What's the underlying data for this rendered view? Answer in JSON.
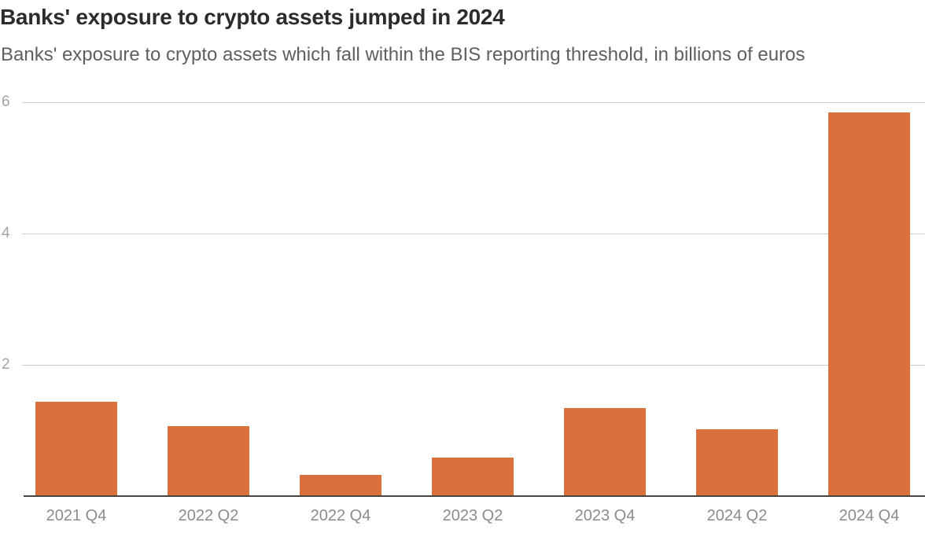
{
  "header": {
    "title": "Banks' exposure to crypto assets jumped in 2024",
    "subtitle": "Banks' exposure to crypto assets which fall within the BIS reporting threshold, in billions of euros"
  },
  "chart_data": {
    "type": "bar",
    "title": "Banks' exposure to crypto assets jumped in 2024",
    "subtitle": "Banks' exposure to crypto assets which fall within the BIS reporting threshold, in billions of euros",
    "categories": [
      "2021 Q4",
      "2022 Q2",
      "2022 Q4",
      "2023 Q2",
      "2023 Q4",
      "2024 Q2",
      "2024 Q4"
    ],
    "values": [
      1.44,
      1.07,
      0.32,
      0.59,
      1.34,
      1.02,
      5.84
    ],
    "xlabel": "",
    "ylabel": "billions of euros",
    "ylim": [
      0,
      6.2
    ],
    "yticks": [
      2,
      4,
      6
    ],
    "grid": "horizontal-only",
    "legend": "none",
    "bar_color": "#d9703d",
    "gridline_color": "#cccccc",
    "axis_line_color": "#474542",
    "tick_label_color": "#a3a3a3",
    "category_label_color": "#8e8c8a"
  }
}
